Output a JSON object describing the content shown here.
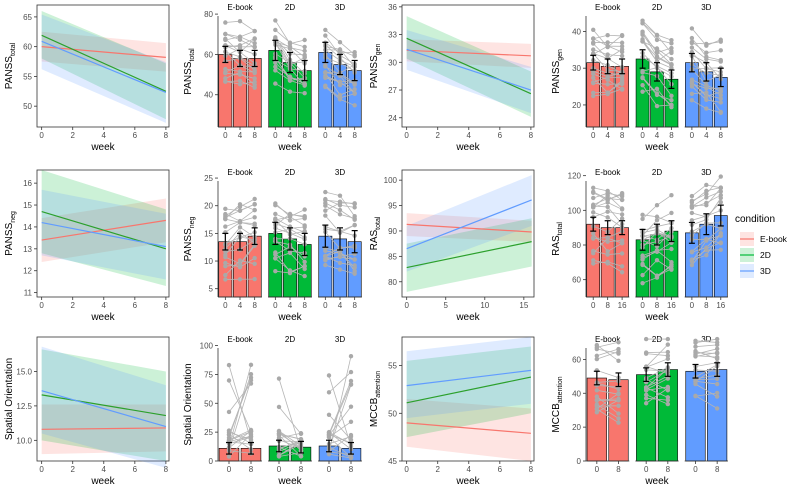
{
  "colors": {
    "ebook": "#F8766D",
    "2d": "#00BA38",
    "3d": "#619CFF",
    "line_2d": "#2CA02C"
  },
  "legend": {
    "title": "condition",
    "items": [
      {
        "label": "E-book",
        "color": "#F8766D"
      },
      {
        "label": "2D",
        "color": "#00BA38"
      },
      {
        "label": "3D",
        "color": "#619CFF"
      }
    ]
  },
  "chart_data": [
    {
      "id": "panss-total-line",
      "type": "line",
      "ylabel_main": "PANSS",
      "ylabel_sub": "total",
      "xlabel": "week",
      "xlim": [
        -0.3,
        8.2
      ],
      "ylim": [
        46.5,
        67
      ],
      "xticks": [
        0,
        2,
        4,
        6,
        8
      ],
      "yticks": [
        50,
        55,
        60,
        65
      ],
      "series": [
        {
          "name": "E-book",
          "x": [
            0,
            8
          ],
          "y": [
            60.0,
            58.2
          ],
          "lower": [
            57.5,
            55.8
          ],
          "upper": [
            62.5,
            60.6
          ]
        },
        {
          "name": "2D",
          "x": [
            0,
            8
          ],
          "y": [
            61.9,
            52.5
          ],
          "lower": [
            58.0,
            47.8
          ],
          "upper": [
            66.0,
            57.2
          ]
        },
        {
          "name": "3D",
          "x": [
            0,
            8
          ],
          "y": [
            60.9,
            52.3
          ],
          "lower": [
            56.2,
            47.2
          ],
          "upper": [
            65.4,
            57.4
          ]
        }
      ]
    },
    {
      "id": "panss-total-bar",
      "type": "bar",
      "ylabel_main": "PANSS",
      "ylabel_sub": "total",
      "xlabel": "week",
      "ylim": [
        24,
        86
      ],
      "yticks": [
        40,
        60,
        80
      ],
      "groups": [
        {
          "name": "E-book",
          "categories": [
            "0",
            "4",
            "8"
          ],
          "values": [
            60,
            58,
            58
          ],
          "errors": [
            4,
            4,
            4
          ]
        },
        {
          "name": "2D",
          "categories": [
            "0",
            "4",
            "8"
          ],
          "values": [
            62,
            56,
            52
          ],
          "errors": [
            5,
            5,
            5
          ]
        },
        {
          "name": "3D",
          "categories": [
            "0",
            "4",
            "8"
          ],
          "values": [
            61,
            55,
            52
          ],
          "errors": [
            5,
            5,
            5
          ]
        }
      ]
    },
    {
      "id": "panss-gen-line",
      "type": "line",
      "ylabel_main": "PANSS",
      "ylabel_sub": "gen",
      "xlabel": "week",
      "xlim": [
        -0.3,
        8.2
      ],
      "ylim": [
        23,
        36.2
      ],
      "xticks": [
        0,
        2,
        4,
        6,
        8
      ],
      "yticks": [
        24,
        27,
        30,
        33,
        36
      ],
      "series": [
        {
          "name": "E-book",
          "x": [
            0,
            8
          ],
          "y": [
            31.3,
            30.7
          ],
          "lower": [
            30.1,
            29.4
          ],
          "upper": [
            32.5,
            32.0
          ]
        },
        {
          "name": "2D",
          "x": [
            0,
            8
          ],
          "y": [
            32.6,
            26.6
          ],
          "lower": [
            30.4,
            24.1
          ],
          "upper": [
            35.0,
            29.0
          ]
        },
        {
          "name": "3D",
          "x": [
            0,
            8
          ],
          "y": [
            31.4,
            27.0
          ],
          "lower": [
            29.2,
            24.5
          ],
          "upper": [
            33.5,
            29.5
          ]
        }
      ]
    },
    {
      "id": "panss-gen-bar",
      "type": "bar",
      "ylabel_main": "PANSS",
      "ylabel_sub": "gen",
      "xlabel": "week",
      "ylim": [
        14,
        48
      ],
      "yticks": [
        20,
        30,
        40
      ],
      "groups": [
        {
          "name": "E-book",
          "categories": [
            "0",
            "4",
            "8"
          ],
          "values": [
            31.5,
            30.5,
            30.5
          ],
          "errors": [
            2,
            2,
            2
          ]
        },
        {
          "name": "2D",
          "categories": [
            "0",
            "4",
            "8"
          ],
          "values": [
            32.5,
            29,
            27
          ],
          "errors": [
            2.5,
            2.5,
            2.5
          ]
        },
        {
          "name": "3D",
          "categories": [
            "0",
            "4",
            "8"
          ],
          "values": [
            31.5,
            29,
            27.5
          ],
          "errors": [
            2.5,
            2.5,
            2.5
          ]
        }
      ]
    },
    {
      "id": "panss-neg-line",
      "type": "line",
      "ylabel_main": "PANSS",
      "ylabel_sub": "neg",
      "xlabel": "week",
      "xlim": [
        -0.3,
        8.2
      ],
      "ylim": [
        10.8,
        16.6
      ],
      "xticks": [
        0,
        2,
        4,
        6,
        8
      ],
      "yticks": [
        11,
        12,
        13,
        14,
        15,
        16
      ],
      "series": [
        {
          "name": "E-book",
          "x": [
            0,
            8
          ],
          "y": [
            13.4,
            14.3
          ],
          "lower": [
            12.4,
            13.3
          ],
          "upper": [
            14.4,
            15.3
          ]
        },
        {
          "name": "2D",
          "x": [
            0,
            8
          ],
          "y": [
            14.7,
            13.0
          ],
          "lower": [
            12.8,
            11.3
          ],
          "upper": [
            16.6,
            14.8
          ]
        },
        {
          "name": "3D",
          "x": [
            0,
            8
          ],
          "y": [
            14.2,
            13.1
          ],
          "lower": [
            12.7,
            11.6
          ],
          "upper": [
            15.7,
            14.6
          ]
        }
      ]
    },
    {
      "id": "panss-neg-bar",
      "type": "bar",
      "ylabel_main": "PANSS",
      "ylabel_sub": "neg",
      "xlabel": "week",
      "ylim": [
        3.5,
        27
      ],
      "yticks": [
        5,
        10,
        15,
        20,
        25
      ],
      "groups": [
        {
          "name": "E-book",
          "categories": [
            "0",
            "4",
            "8"
          ],
          "values": [
            13.5,
            13.5,
            14.5
          ],
          "errors": [
            1.5,
            1.5,
            1.5
          ]
        },
        {
          "name": "2D",
          "categories": [
            "0",
            "4",
            "8"
          ],
          "values": [
            15,
            14,
            13
          ],
          "errors": [
            2,
            2,
            2
          ]
        },
        {
          "name": "3D",
          "categories": [
            "0",
            "4",
            "8"
          ],
          "values": [
            14.5,
            14,
            13.5
          ],
          "errors": [
            2,
            2,
            2
          ]
        }
      ]
    },
    {
      "id": "ras-total-line",
      "type": "line",
      "ylabel_main": "RAS",
      "ylabel_sub": "total",
      "xlabel": "week",
      "xlim": [
        -0.6,
        16.3
      ],
      "ylim": [
        77,
        102
      ],
      "xticks": [
        0,
        5,
        10,
        15
      ],
      "yticks": [
        80,
        85,
        90,
        95,
        100
      ],
      "series": [
        {
          "name": "E-book",
          "x": [
            0,
            16
          ],
          "y": [
            91.3,
            89.8
          ],
          "lower": [
            89.0,
            87.8
          ],
          "upper": [
            93.5,
            92.0
          ]
        },
        {
          "name": "2D",
          "x": [
            0,
            16
          ],
          "y": [
            82.8,
            87.9
          ],
          "lower": [
            78.0,
            83.0
          ],
          "upper": [
            87.5,
            92.5
          ]
        },
        {
          "name": "3D",
          "x": [
            0,
            16
          ],
          "y": [
            86.5,
            96.1
          ],
          "lower": [
            82.0,
            91.0
          ],
          "upper": [
            91.0,
            101.0
          ]
        }
      ]
    },
    {
      "id": "ras-total-bar",
      "type": "bar",
      "ylabel_main": "RAS",
      "ylabel_sub": "total",
      "xlabel": "week",
      "ylim": [
        50,
        125
      ],
      "yticks": [
        60,
        80,
        100,
        120
      ],
      "groups": [
        {
          "name": "E-book",
          "categories": [
            "0",
            "8",
            "16"
          ],
          "values": [
            92,
            90,
            90
          ],
          "errors": [
            4,
            4,
            4
          ]
        },
        {
          "name": "2D",
          "categories": [
            "0",
            "8",
            "16"
          ],
          "values": [
            83,
            86,
            88
          ],
          "errors": [
            6,
            6,
            6
          ]
        },
        {
          "name": "3D",
          "categories": [
            "0",
            "8",
            "16"
          ],
          "values": [
            87,
            92,
            97
          ],
          "errors": [
            6,
            6,
            6
          ]
        }
      ]
    },
    {
      "id": "spatial-line",
      "type": "line",
      "ylabel_main": "Spatial Orientation",
      "ylabel_sub": "",
      "xlabel": "week",
      "xlim": [
        -0.3,
        8.2
      ],
      "ylim": [
        8.5,
        17.5
      ],
      "xticks": [
        0,
        2,
        4,
        6,
        8
      ],
      "yticks": [
        10.0,
        12.5,
        15.0
      ],
      "series": [
        {
          "name": "E-book",
          "x": [
            0,
            8
          ],
          "y": [
            10.8,
            10.9
          ],
          "lower": [
            9.0,
            9.2
          ],
          "upper": [
            12.6,
            12.6
          ]
        },
        {
          "name": "2D",
          "x": [
            0,
            8
          ],
          "y": [
            13.3,
            11.8
          ],
          "lower": [
            10.0,
            8.5
          ],
          "upper": [
            16.6,
            15.0
          ]
        },
        {
          "name": "3D",
          "x": [
            0,
            8
          ],
          "y": [
            13.6,
            11.0
          ],
          "lower": [
            10.5,
            8.0
          ],
          "upper": [
            16.8,
            14.0
          ]
        }
      ]
    },
    {
      "id": "spatial-bar",
      "type": "bar",
      "ylabel_main": "Spatial Orientation",
      "ylabel_sub": "",
      "xlabel": "week",
      "ylim": [
        0,
        110
      ],
      "yticks": [
        0,
        25,
        50,
        75,
        100
      ],
      "groups": [
        {
          "name": "E-book",
          "categories": [
            "0",
            "8"
          ],
          "values": [
            11,
            11
          ],
          "errors": [
            5,
            5
          ]
        },
        {
          "name": "2D",
          "categories": [
            "0",
            "8"
          ],
          "values": [
            13,
            12
          ],
          "errors": [
            5,
            5
          ]
        },
        {
          "name": "3D",
          "categories": [
            "0",
            "8"
          ],
          "values": [
            13,
            11
          ],
          "errors": [
            5,
            5
          ]
        }
      ]
    },
    {
      "id": "mccb-line",
      "type": "line",
      "ylabel_main": "MCCB",
      "ylabel_sub": "attention",
      "xlabel": "week",
      "xlim": [
        -0.3,
        8.2
      ],
      "ylim": [
        45,
        58
      ],
      "xticks": [
        0,
        2,
        4,
        6,
        8
      ],
      "yticks": [
        45,
        50,
        55
      ],
      "series": [
        {
          "name": "E-book",
          "x": [
            0,
            8
          ],
          "y": [
            49.0,
            47.9
          ],
          "lower": [
            46.5,
            45.0
          ],
          "upper": [
            51.5,
            50.5
          ]
        },
        {
          "name": "2D",
          "x": [
            0,
            8
          ],
          "y": [
            51.1,
            53.8
          ],
          "lower": [
            47.5,
            50.0
          ],
          "upper": [
            55.5,
            57.0
          ]
        },
        {
          "name": "3D",
          "x": [
            0,
            8
          ],
          "y": [
            52.9,
            54.5
          ],
          "lower": [
            49.5,
            51.0
          ],
          "upper": [
            56.5,
            58.0
          ]
        }
      ]
    },
    {
      "id": "mccb-bar",
      "type": "bar",
      "ylabel_main": "MCCB",
      "ylabel_sub": "attention",
      "xlabel": "week",
      "ylim": [
        0,
        75
      ],
      "yticks": [
        0,
        20,
        40,
        60
      ],
      "groups": [
        {
          "name": "E-book",
          "categories": [
            "0",
            "8"
          ],
          "values": [
            49,
            48
          ],
          "errors": [
            4,
            4
          ]
        },
        {
          "name": "2D",
          "categories": [
            "0",
            "8"
          ],
          "values": [
            51,
            54
          ],
          "errors": [
            4,
            4
          ]
        },
        {
          "name": "3D",
          "categories": [
            "0",
            "8"
          ],
          "values": [
            53,
            54
          ],
          "errors": [
            4,
            4
          ]
        }
      ]
    }
  ]
}
